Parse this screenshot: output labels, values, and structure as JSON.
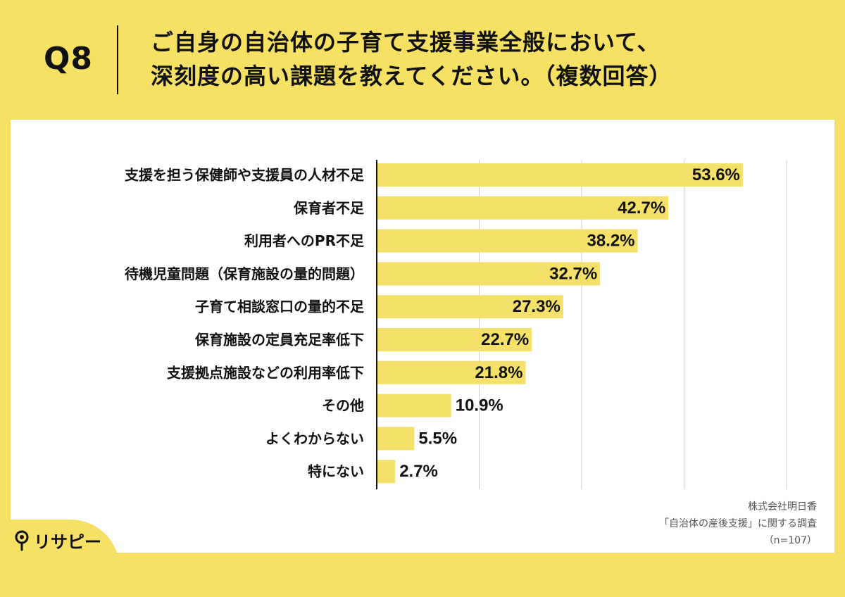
{
  "header": {
    "q_label": "Q8",
    "title_line1": "ご自身の自治体の子育て支援事業全般において、",
    "title_line2": "深刻度の高い課題を教えてください。（複数回答）"
  },
  "source": {
    "line1": "株式会社明日香",
    "line2": "「自治体の産後支援」に関する調査",
    "line3": "（n=107）"
  },
  "brand": {
    "name": "リサピー",
    "icon": "pin-icon"
  },
  "colors": {
    "background": "#F7E165",
    "bar": "#F5E16A",
    "panel": "#FFFFFF",
    "gridline": "#CFCFCF",
    "axis": "#111111"
  },
  "chart_data": {
    "type": "bar",
    "orientation": "horizontal",
    "categories": [
      "支援を担う保健師や支援員の人材不足",
      "保育者不足",
      "利用者へのPR不足",
      "待機児童問題（保育施設の量的問題）",
      "子育て相談窓口の量的不足",
      "保育施設の定員充足率低下",
      "支援拠点施設などの利用率低下",
      "その他",
      "よくわからない",
      "特にない"
    ],
    "values": [
      53.6,
      42.7,
      38.2,
      32.7,
      27.3,
      22.7,
      21.8,
      10.9,
      5.5,
      2.7
    ],
    "value_labels": [
      "53.6%",
      "42.7%",
      "38.2%",
      "32.7%",
      "27.3%",
      "22.7%",
      "21.8%",
      "10.9%",
      "5.5%",
      "2.7%"
    ],
    "xlim": [
      0,
      60
    ],
    "grid_ticks": [
      15,
      30,
      45,
      60
    ],
    "grid": true,
    "title": "",
    "xlabel": "",
    "ylabel": ""
  }
}
